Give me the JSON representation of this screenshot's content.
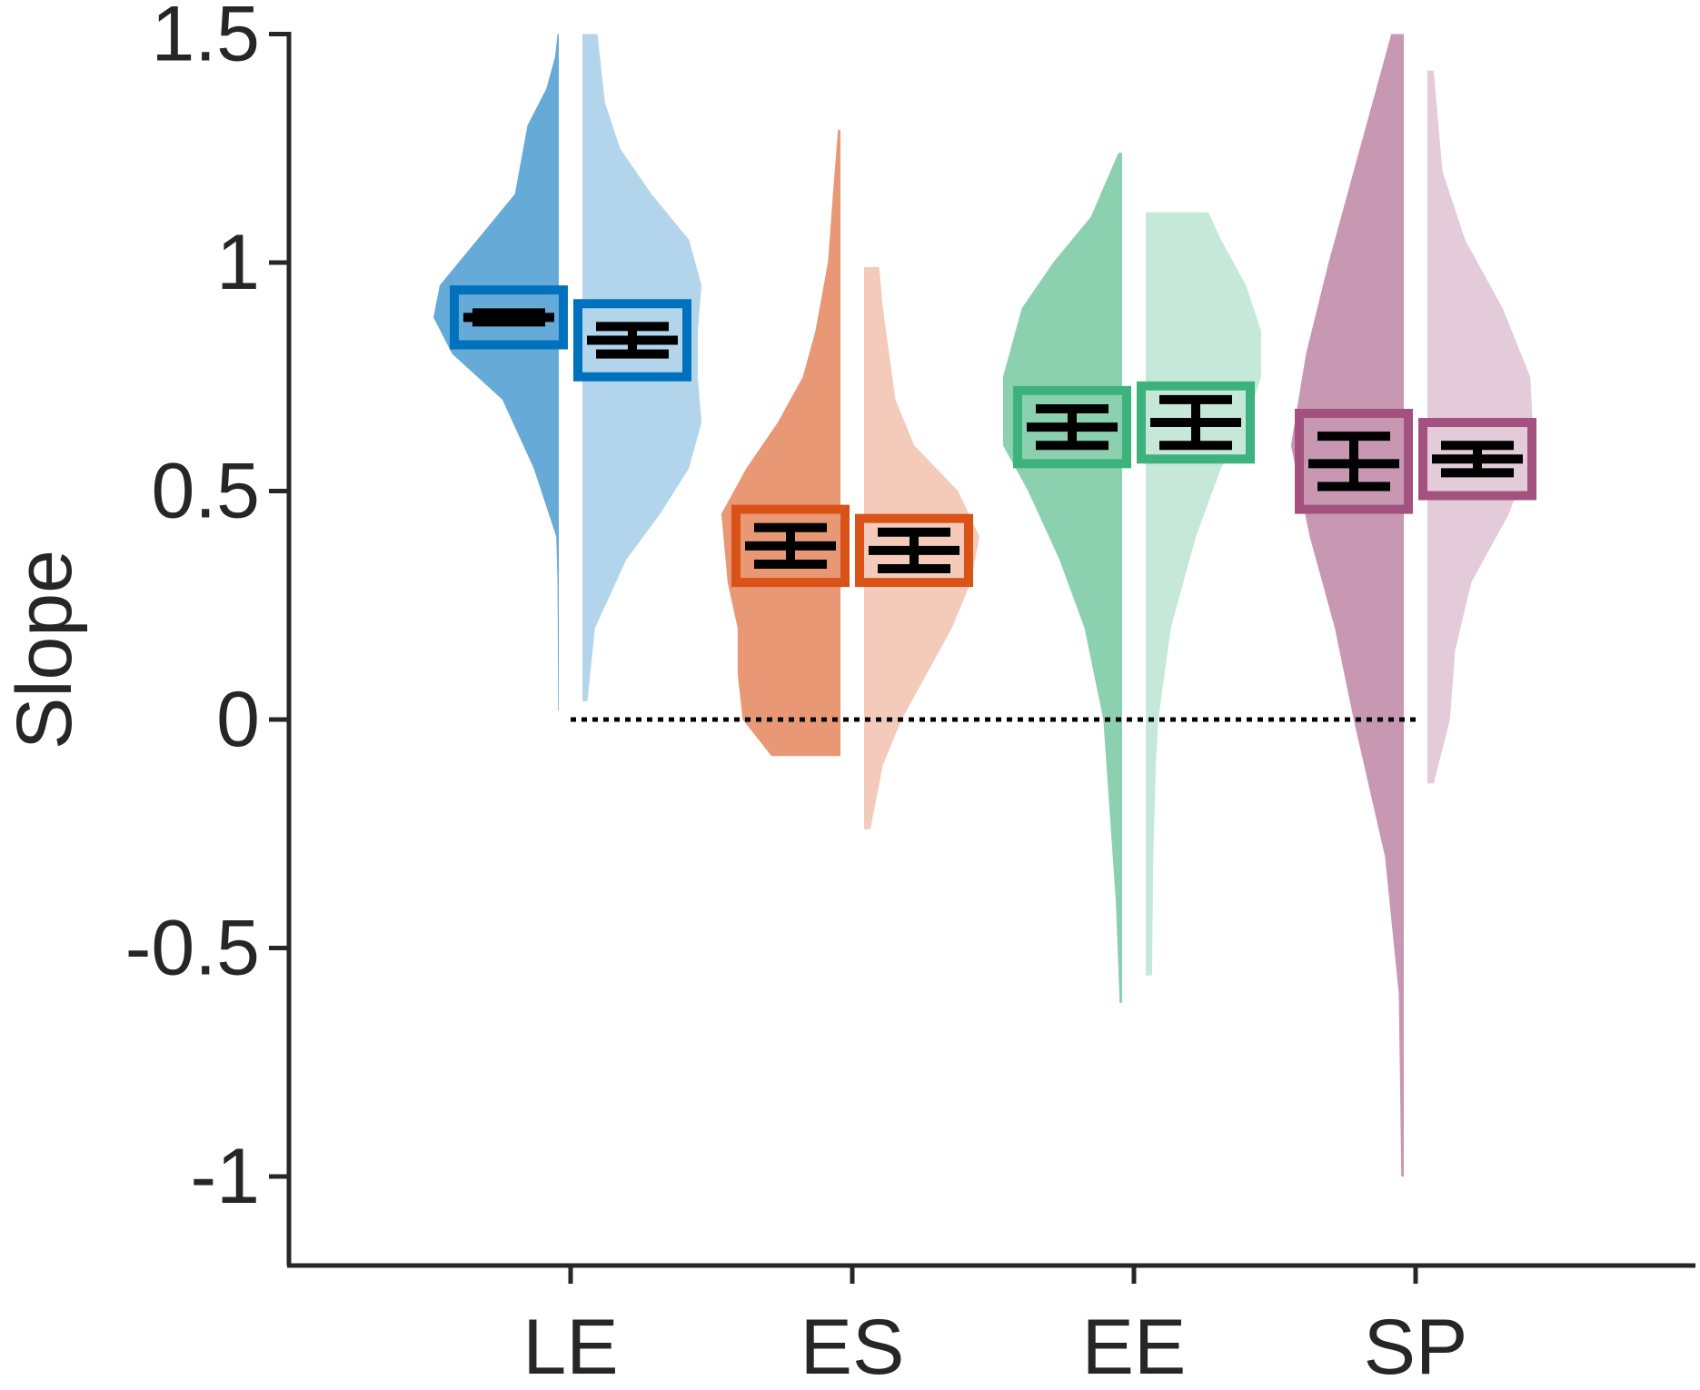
{
  "chart_data": {
    "type": "violin",
    "title": "",
    "xlabel": "",
    "ylabel": "Slope",
    "ylim": [
      -1.25,
      1.5
    ],
    "yticks": [
      -1,
      -0.5,
      0,
      0.5,
      1,
      1.5
    ],
    "ytick_labels": [
      "-1",
      "-0.5",
      "0",
      "0.5",
      "1",
      "1.5"
    ],
    "categories": [
      "LE",
      "ES",
      "EE",
      "SP"
    ],
    "grid": false,
    "legend": "none",
    "reference_line": {
      "y": 0,
      "style": "dotted",
      "x_from": "LE",
      "x_to": "SP"
    },
    "colors": {
      "LE": "#0072BD",
      "ES": "#D95319",
      "EE": "#3DB27C",
      "SP": "#A3517F"
    },
    "series": [
      {
        "category": "LE",
        "side": "left",
        "mean": 0.88,
        "box_low": 0.82,
        "box_high": 0.94,
        "err_low": 0.87,
        "err_high": 0.89,
        "range": [
          0.02,
          1.5
        ],
        "density": [
          [
            0.02,
            0.005
          ],
          [
            0.3,
            0.01
          ],
          [
            0.4,
            0.02
          ],
          [
            0.55,
            0.2
          ],
          [
            0.7,
            0.45
          ],
          [
            0.8,
            0.85
          ],
          [
            0.88,
            1.0
          ],
          [
            0.95,
            0.95
          ],
          [
            1.05,
            0.65
          ],
          [
            1.15,
            0.35
          ],
          [
            1.3,
            0.25
          ],
          [
            1.38,
            0.1
          ],
          [
            1.45,
            0.03
          ],
          [
            1.5,
            0.01
          ]
        ]
      },
      {
        "category": "LE",
        "side": "right",
        "mean": 0.83,
        "box_low": 0.75,
        "box_high": 0.91,
        "err_low": 0.8,
        "err_high": 0.86,
        "range": [
          0.04,
          1.5
        ],
        "density": [
          [
            0.04,
            0.04
          ],
          [
            0.2,
            0.1
          ],
          [
            0.35,
            0.35
          ],
          [
            0.45,
            0.62
          ],
          [
            0.55,
            0.85
          ],
          [
            0.65,
            0.95
          ],
          [
            0.75,
            0.92
          ],
          [
            0.85,
            0.92
          ],
          [
            0.95,
            0.95
          ],
          [
            1.05,
            0.85
          ],
          [
            1.15,
            0.55
          ],
          [
            1.25,
            0.3
          ],
          [
            1.35,
            0.18
          ],
          [
            1.5,
            0.12
          ]
        ]
      },
      {
        "category": "ES",
        "side": "left",
        "mean": 0.38,
        "box_low": 0.3,
        "box_high": 0.46,
        "err_low": 0.34,
        "err_high": 0.42,
        "range": [
          -0.08,
          1.29
        ],
        "density": [
          [
            -0.08,
            0.55
          ],
          [
            0.0,
            0.78
          ],
          [
            0.1,
            0.82
          ],
          [
            0.2,
            0.82
          ],
          [
            0.3,
            0.9
          ],
          [
            0.45,
            0.95
          ],
          [
            0.55,
            0.75
          ],
          [
            0.65,
            0.5
          ],
          [
            0.75,
            0.3
          ],
          [
            0.85,
            0.2
          ],
          [
            1.0,
            0.1
          ],
          [
            1.15,
            0.06
          ],
          [
            1.29,
            0.02
          ]
        ]
      },
      {
        "category": "ES",
        "side": "right",
        "mean": 0.37,
        "box_low": 0.3,
        "box_high": 0.44,
        "err_low": 0.33,
        "err_high": 0.41,
        "range": [
          -0.24,
          0.99
        ],
        "density": [
          [
            -0.24,
            0.05
          ],
          [
            -0.1,
            0.15
          ],
          [
            0.0,
            0.3
          ],
          [
            0.1,
            0.5
          ],
          [
            0.2,
            0.7
          ],
          [
            0.3,
            0.85
          ],
          [
            0.4,
            0.92
          ],
          [
            0.5,
            0.75
          ],
          [
            0.6,
            0.4
          ],
          [
            0.7,
            0.25
          ],
          [
            0.8,
            0.2
          ],
          [
            0.9,
            0.15
          ],
          [
            0.99,
            0.12
          ]
        ]
      },
      {
        "category": "EE",
        "side": "left",
        "mean": 0.64,
        "box_low": 0.56,
        "box_high": 0.72,
        "err_low": 0.6,
        "err_high": 0.68,
        "range": [
          -0.62,
          1.24
        ],
        "density": [
          [
            -0.62,
            0.02
          ],
          [
            -0.4,
            0.05
          ],
          [
            -0.2,
            0.1
          ],
          [
            0.0,
            0.15
          ],
          [
            0.2,
            0.3
          ],
          [
            0.35,
            0.5
          ],
          [
            0.5,
            0.75
          ],
          [
            0.6,
            0.95
          ],
          [
            0.75,
            0.95
          ],
          [
            0.9,
            0.8
          ],
          [
            1.0,
            0.55
          ],
          [
            1.1,
            0.25
          ],
          [
            1.24,
            0.03
          ]
        ]
      },
      {
        "category": "EE",
        "side": "right",
        "mean": 0.65,
        "box_low": 0.57,
        "box_high": 0.73,
        "err_low": 0.6,
        "err_high": 0.7,
        "range": [
          -0.56,
          1.11
        ],
        "density": [
          [
            -0.56,
            0.05
          ],
          [
            -0.3,
            0.06
          ],
          [
            -0.1,
            0.08
          ],
          [
            0.0,
            0.1
          ],
          [
            0.2,
            0.2
          ],
          [
            0.4,
            0.4
          ],
          [
            0.55,
            0.6
          ],
          [
            0.65,
            0.8
          ],
          [
            0.75,
            0.92
          ],
          [
            0.85,
            0.92
          ],
          [
            0.95,
            0.8
          ],
          [
            1.05,
            0.6
          ],
          [
            1.11,
            0.5
          ]
        ]
      },
      {
        "category": "SP",
        "side": "left",
        "mean": 0.56,
        "box_low": 0.46,
        "box_high": 0.67,
        "err_low": 0.51,
        "err_high": 0.62,
        "range": [
          -1.0,
          1.5
        ],
        "density": [
          [
            -1.0,
            0.02
          ],
          [
            -0.6,
            0.04
          ],
          [
            -0.3,
            0.15
          ],
          [
            0.0,
            0.4
          ],
          [
            0.2,
            0.55
          ],
          [
            0.4,
            0.75
          ],
          [
            0.6,
            0.9
          ],
          [
            0.8,
            0.78
          ],
          [
            1.0,
            0.6
          ],
          [
            1.2,
            0.4
          ],
          [
            1.35,
            0.25
          ],
          [
            1.5,
            0.1
          ]
        ]
      },
      {
        "category": "SP",
        "side": "right",
        "mean": 0.57,
        "box_low": 0.49,
        "box_high": 0.65,
        "err_low": 0.54,
        "err_high": 0.6,
        "range": [
          -0.14,
          1.42
        ],
        "density": [
          [
            -0.14,
            0.05
          ],
          [
            0.0,
            0.18
          ],
          [
            0.15,
            0.22
          ],
          [
            0.3,
            0.35
          ],
          [
            0.45,
            0.65
          ],
          [
            0.6,
            0.85
          ],
          [
            0.75,
            0.82
          ],
          [
            0.9,
            0.6
          ],
          [
            1.05,
            0.3
          ],
          [
            1.2,
            0.12
          ],
          [
            1.42,
            0.05
          ]
        ]
      }
    ]
  }
}
